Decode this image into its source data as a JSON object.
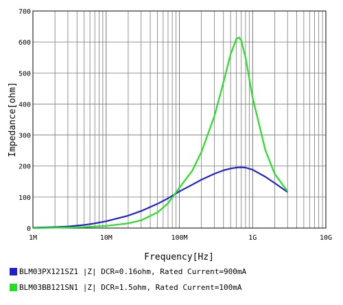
{
  "chart_data": {
    "type": "line",
    "xlabel": "Frequency[Hz]",
    "ylabel": "Impedance[ohm]",
    "x_scale": "log",
    "xlim": [
      "1M",
      "10G"
    ],
    "ylim": [
      0,
      700
    ],
    "grid": true,
    "legend_position": "bottom",
    "x_tick_labels": [
      "1M",
      "10M",
      "100M",
      "1G",
      "10G"
    ],
    "y_tick_labels": [
      "0",
      "100",
      "200",
      "300",
      "400",
      "500",
      "600",
      "700"
    ],
    "series": [
      {
        "name": "BLM03PX121SZ1 |Z| DCR=0.16ohm, Rated Current=900mA",
        "color": "#1f1fd0",
        "x_hz": [
          1000000,
          2000000,
          3000000,
          5000000,
          7000000,
          10000000,
          20000000,
          30000000,
          50000000,
          70000000,
          100000000,
          150000000,
          200000000,
          300000000,
          400000000,
          500000000,
          600000000,
          700000000,
          800000000,
          1000000000,
          1500000000,
          2000000000,
          3000000000
        ],
        "y_ohm": [
          1,
          3,
          5,
          10,
          15,
          22,
          40,
          55,
          78,
          96,
          118,
          140,
          156,
          175,
          186,
          192,
          195,
          196,
          195,
          188,
          165,
          145,
          116
        ]
      },
      {
        "name": "BLM03BB121SN1 |Z| DCR=1.5ohm, Rated Current=100mA",
        "color": "#22e022",
        "x_hz": [
          1000000,
          3000000,
          5000000,
          10000000,
          20000000,
          30000000,
          50000000,
          70000000,
          100000000,
          150000000,
          200000000,
          300000000,
          400000000,
          500000000,
          600000000,
          650000000,
          700000000,
          800000000,
          1000000000,
          1500000000,
          2000000000,
          3000000000
        ],
        "y_ohm": [
          0,
          2,
          3,
          7,
          15,
          25,
          50,
          80,
          130,
          185,
          245,
          360,
          470,
          560,
          610,
          615,
          605,
          550,
          420,
          250,
          175,
          118
        ]
      }
    ]
  },
  "legend": [
    {
      "label": "BLM03PX121SZ1 |Z| DCR=0.16ohm, Rated Current=900mA",
      "color": "#1f1fd0"
    },
    {
      "label": "BLM03BB121SN1 |Z| DCR=1.5ohm, Rated Current=100mA",
      "color": "#22e022"
    }
  ]
}
